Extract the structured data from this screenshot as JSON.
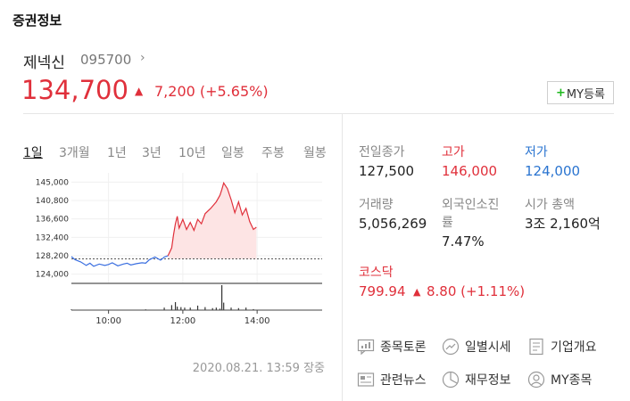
{
  "section_title": "증권정보",
  "stock": {
    "name": "제넥신",
    "code": "095700",
    "price": "134,700",
    "change": "7,200 (+5.65%)"
  },
  "my_button": {
    "plus": "+",
    "label": "MY등록"
  },
  "period_tabs": [
    "1일",
    "3개월",
    "1년",
    "3년",
    "10년",
    "일봉",
    "주봉",
    "월봉"
  ],
  "chart_data": {
    "type": "line",
    "title": "",
    "x_ticks": [
      "10:00",
      "12:00",
      "14:00"
    ],
    "y_ticks": [
      "145,000",
      "140,800",
      "136,600",
      "132,400",
      "128,200",
      "124,000"
    ],
    "ylim": [
      121900,
      147100
    ],
    "reference_price": 127500,
    "colors": {
      "up": "#e0303b",
      "down": "#3b6fe0",
      "fill": "#fde4e4",
      "volume": "#333333"
    },
    "series": [
      {
        "x": [
          9.0,
          9.1,
          9.25,
          9.4,
          9.5,
          9.6,
          9.75,
          9.9,
          10.0,
          10.1,
          10.25,
          10.4,
          10.5,
          10.6,
          10.75,
          10.9,
          11.0,
          11.1,
          11.25,
          11.4,
          11.5,
          11.6,
          11.7,
          11.75,
          11.8,
          11.85,
          11.9,
          12.0,
          12.1,
          12.2,
          12.3,
          12.4,
          12.5,
          12.6,
          12.75,
          12.9,
          13.0,
          13.05,
          13.1,
          13.2,
          13.3,
          13.4,
          13.5,
          13.6,
          13.7,
          13.8,
          13.9,
          13.98
        ],
        "values": [
          128000,
          127300,
          126800,
          126000,
          126500,
          125800,
          126300,
          126000,
          126200,
          126600,
          125900,
          126300,
          126500,
          126100,
          126400,
          126600,
          126500,
          127300,
          127900,
          127200,
          127900,
          128200,
          130000,
          133000,
          135500,
          137200,
          134500,
          136500,
          134200,
          135800,
          134000,
          136500,
          135500,
          137800,
          139000,
          140500,
          142000,
          143300,
          144800,
          143500,
          141000,
          138000,
          140500,
          137500,
          139000,
          136000,
          134200,
          134700
        ]
      }
    ],
    "volume": {
      "x": [
        9.0,
        11.0,
        11.5,
        11.7,
        11.8,
        11.85,
        11.95,
        12.05,
        12.2,
        12.4,
        12.6,
        12.8,
        12.9,
        13.0,
        13.05,
        13.1,
        13.3,
        13.5,
        13.7,
        13.9
      ],
      "values": [
        3,
        3,
        10,
        20,
        32,
        14,
        12,
        10,
        10,
        18,
        12,
        8,
        10,
        6,
        100,
        30,
        10,
        8,
        10,
        4
      ]
    }
  },
  "chart_timestamp": "2020.08.21. 13:59 장중",
  "stats": {
    "prev_close": {
      "label": "전일종가",
      "value": "127,500"
    },
    "high": {
      "label": "고가",
      "value": "146,000"
    },
    "low": {
      "label": "저가",
      "value": "124,000"
    },
    "volume": {
      "label": "거래량",
      "value": "5,056,269"
    },
    "foreign": {
      "label1": "외국인소진",
      "label2": "률",
      "value": "7.47%"
    },
    "market_cap": {
      "label": "시가 총액",
      "value": "3조 2,160억"
    }
  },
  "index": {
    "name": "코스닥",
    "value": "799.94",
    "change": "8.80 (+1.11%)"
  },
  "links": {
    "forum": "종목토론",
    "daily": "일별시세",
    "company": "기업개요",
    "news": "관련뉴스",
    "finance": "재무정보",
    "my_stock": "MY종목"
  }
}
